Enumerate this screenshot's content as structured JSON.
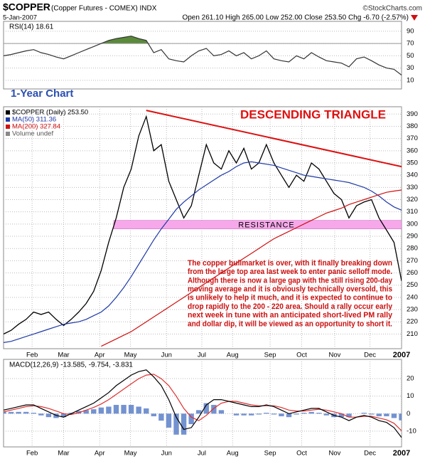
{
  "header": {
    "title": "$COPPER",
    "subtitle": "(Copper Futures - COMEX) INDX",
    "source": "©StockCharts.com",
    "date": "5-Jan-2007",
    "quote": "Open 261.10 High 265.00 Low 252.00 Close 253.50 Chg -6.70 (-2.57%)"
  },
  "chart_data": [
    {
      "type": "line",
      "label": "RSI(14) 18.61",
      "xlim": [
        0,
        53
      ],
      "ylim": [
        -4,
        106
      ],
      "yticks": [
        90,
        70,
        50,
        30,
        10
      ],
      "fill_above": 70,
      "fill_color": "#5a8a3a",
      "series": [
        {
          "name": "RSI(14)",
          "color": "#333333",
          "values": [
            50,
            52,
            55,
            58,
            60,
            55,
            52,
            48,
            45,
            50,
            55,
            60,
            65,
            70,
            75,
            78,
            80,
            82,
            78,
            75,
            55,
            60,
            45,
            42,
            40,
            50,
            58,
            62,
            50,
            52,
            58,
            50,
            55,
            45,
            50,
            58,
            45,
            42,
            40,
            50,
            45,
            55,
            48,
            42,
            40,
            38,
            32,
            45,
            48,
            42,
            35,
            30,
            28,
            18.61
          ]
        }
      ],
      "annotation": "1-Year Chart"
    },
    {
      "type": "line",
      "title": "DESCENDING TRIANGLE",
      "xlim": [
        0,
        53
      ],
      "ylim": [
        198,
        396
      ],
      "yticks": [
        210,
        220,
        230,
        240,
        250,
        260,
        270,
        280,
        290,
        300,
        310,
        320,
        330,
        340,
        350,
        360,
        370,
        380,
        390
      ],
      "xticks": [
        {
          "value": 3.8,
          "label": "Feb"
        },
        {
          "value": 8,
          "label": "Mar"
        },
        {
          "value": 12.8,
          "label": "Apr"
        },
        {
          "value": 16.9,
          "label": "May"
        },
        {
          "value": 21.7,
          "label": "Jun"
        },
        {
          "value": 26.4,
          "label": "Jul"
        },
        {
          "value": 30.5,
          "label": "Aug"
        },
        {
          "value": 35.5,
          "label": "Sep"
        },
        {
          "value": 39.7,
          "label": "Oct"
        },
        {
          "value": 44.1,
          "label": "Nov"
        },
        {
          "value": 48.8,
          "label": "Dec"
        },
        {
          "value": 53,
          "label": "2007"
        }
      ],
      "grid": true,
      "series": [
        {
          "name": "$COPPER (Daily) 253.50",
          "color": "#000000",
          "values": [
            210,
            213,
            218,
            222,
            228,
            226,
            228,
            222,
            217,
            222,
            228,
            235,
            245,
            262,
            285,
            305,
            330,
            345,
            372,
            388,
            360,
            365,
            335,
            320,
            305,
            315,
            340,
            365,
            350,
            345,
            360,
            350,
            362,
            345,
            350,
            365,
            350,
            340,
            330,
            340,
            335,
            350,
            345,
            335,
            325,
            320,
            305,
            315,
            318,
            320,
            305,
            295,
            285,
            253.5
          ]
        },
        {
          "name": "MA(50) 311.36",
          "color": "#1f3aa6",
          "values": [
            203,
            204,
            206,
            208,
            210,
            212,
            214,
            216,
            218,
            219,
            220,
            222,
            225,
            228,
            233,
            240,
            248,
            257,
            267,
            277,
            287,
            296,
            304,
            312,
            318,
            323,
            328,
            332,
            336,
            340,
            343,
            347,
            350,
            351,
            350,
            349,
            348,
            346,
            344,
            342,
            340,
            339,
            338,
            337,
            336,
            335,
            334,
            332,
            330,
            327,
            323,
            318,
            314,
            311.36
          ]
        },
        {
          "name": "MA(200) 327.84",
          "color": "#d01010",
          "values": [
            null,
            null,
            null,
            null,
            null,
            null,
            null,
            null,
            null,
            null,
            null,
            null,
            null,
            200,
            203,
            206,
            209,
            212,
            216,
            220,
            224,
            228,
            232,
            236,
            240,
            244,
            248,
            252,
            256,
            260,
            264,
            268,
            272,
            276,
            280,
            284,
            288,
            291,
            294,
            297,
            300,
            303,
            306,
            309,
            311,
            313,
            316,
            318,
            320,
            322,
            324,
            326,
            327,
            327.84
          ]
        }
      ],
      "volume_label": "Volume undef",
      "trendline": {
        "x": [
          19,
          53
        ],
        "values": [
          393,
          347
        ],
        "color": "#dd1010"
      },
      "band": {
        "values": [
          296,
          303
        ],
        "color": "#f6a8ea",
        "label": "RESISTANCE"
      },
      "note": [
        "The copper bullmarket is over, with it finally breaking down",
        "from the large top area last week to enter panic selloff mode.",
        "Although there is now a large gap with the still rising 200-day",
        "moving average and it is obviously technically oversold, this",
        "is unlikely to help it much, and it is expected to continue to",
        "drop rapidly to the 200 - 220 area. Should a rally occur early",
        "next week in tune with an anticipated short-lived PM rally",
        "and dollar dip, it will be viewed as an opportunity to short it."
      ],
      "note_color": "#cc1010"
    },
    {
      "type": "line",
      "label": "MACD(12,26,9) -13.585, -9.754, -3.831",
      "xlim": [
        0,
        53
      ],
      "ylim": [
        -19,
        31
      ],
      "yticks": [
        20,
        10,
        0,
        -10
      ],
      "xticks": [
        {
          "value": 3.8,
          "label": "Feb"
        },
        {
          "value": 8,
          "label": "Mar"
        },
        {
          "value": 12.8,
          "label": "Apr"
        },
        {
          "value": 16.9,
          "label": "May"
        },
        {
          "value": 21.7,
          "label": "Jun"
        },
        {
          "value": 26.4,
          "label": "Jul"
        },
        {
          "value": 30.5,
          "label": "Aug"
        },
        {
          "value": 35.5,
          "label": "Sep"
        },
        {
          "value": 39.7,
          "label": "Oct"
        },
        {
          "value": 44.1,
          "label": "Nov"
        },
        {
          "value": 48.8,
          "label": "Dec"
        },
        {
          "value": 53,
          "label": "2007"
        }
      ],
      "grid": true,
      "series": [
        {
          "name": "Histogram",
          "kind": "bar",
          "color": "#5a7fc8",
          "values": [
            1,
            1,
            1,
            1,
            0.5,
            -1,
            -2,
            -2.5,
            -2,
            0.5,
            1.5,
            2,
            2.5,
            3.5,
            4,
            5,
            5,
            5,
            4,
            3,
            -1.5,
            -4,
            -8,
            -12,
            -12,
            -6,
            2,
            6,
            5,
            2,
            0,
            -1,
            -1,
            -1,
            -0.5,
            0.5,
            -0.5,
            -1.5,
            -2,
            -0.5,
            0.5,
            1,
            0.5,
            -1,
            -2,
            -2,
            -2,
            0,
            0.5,
            -0.5,
            -1.5,
            -1.5,
            -2.5,
            -3.831
          ]
        },
        {
          "name": "Signal",
          "color": "#e03030",
          "values": [
            1,
            2,
            3,
            4,
            4.5,
            4,
            3,
            1.5,
            0,
            -0.5,
            0.5,
            2,
            3.5,
            5.5,
            8,
            11,
            14,
            17,
            20,
            22,
            22.5,
            20,
            16,
            10,
            3,
            -2,
            -4,
            -1,
            3,
            6,
            7,
            7,
            6,
            5,
            4.5,
            4.5,
            4.5,
            3.5,
            2,
            1.5,
            1.5,
            2,
            2.5,
            2,
            1,
            0,
            -2,
            -2,
            -1.5,
            -1.5,
            -2.5,
            -3.5,
            -5.5,
            -9.754
          ]
        },
        {
          "name": "MACD",
          "color": "#000000",
          "values": [
            2,
            3,
            4,
            5,
            5,
            3,
            1,
            -1,
            -2,
            0,
            2,
            4,
            6,
            9,
            12,
            16,
            19,
            22,
            24,
            25,
            21,
            16,
            8,
            -2,
            -9,
            -8,
            -2,
            5,
            8,
            8,
            7,
            6,
            5,
            4,
            4,
            5,
            4,
            2,
            0,
            1,
            2,
            3,
            3,
            1,
            -1,
            -2,
            -4,
            -2,
            -1,
            -2,
            -4,
            -5,
            -8,
            -13.585
          ]
        }
      ]
    }
  ]
}
